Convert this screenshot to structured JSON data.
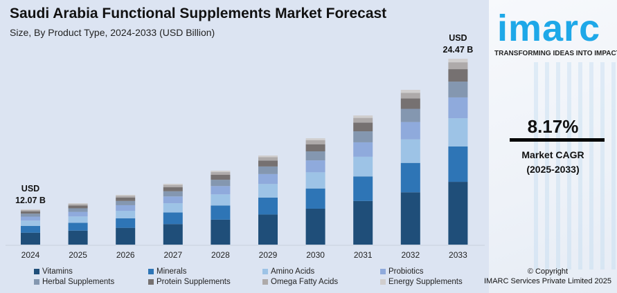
{
  "title": "Saudi Arabia Functional Supplements Market Forecast",
  "subtitle": "Size, By Product Type, 2024-2033 (USD Billion)",
  "brand": {
    "logo": "imarc",
    "tagline": "TRANSFORMING IDEAS INTO IMPACT",
    "color": "#1ea8e8"
  },
  "cagr": {
    "value": "8.17%",
    "label": "Market CAGR",
    "period": "(2025-2033)"
  },
  "copyright": {
    "line1": "© Copyright",
    "line2": "IMARC Services Private Limited 2025"
  },
  "chart_data": {
    "type": "bar",
    "stacked": true,
    "categories": [
      "2024",
      "2025",
      "2026",
      "2027",
      "2028",
      "2029",
      "2030",
      "2031",
      "2032",
      "2033"
    ],
    "totals": [
      12.07,
      12.57,
      13.26,
      14.17,
      15.25,
      16.5,
      17.92,
      19.8,
      21.91,
      24.47
    ],
    "annotations": [
      {
        "category": "2024",
        "line1": "USD",
        "line2": "12.07 B"
      },
      {
        "category": "2033",
        "line1": "USD",
        "line2": "24.47 B"
      }
    ],
    "series": [
      {
        "name": "Vitamins",
        "color": "#1f4e79",
        "share": 0.338
      },
      {
        "name": "Minerals",
        "color": "#2e75b6",
        "share": 0.19
      },
      {
        "name": "Amino Acids",
        "color": "#9dc3e6",
        "share": 0.152
      },
      {
        "name": "Probiotics",
        "color": "#8faadc",
        "share": 0.112
      },
      {
        "name": "Herbal Supplements",
        "color": "#8497b0",
        "share": 0.085
      },
      {
        "name": "Protein Supplements",
        "color": "#767171",
        "share": 0.067
      },
      {
        "name": "Omega Fatty Acids",
        "color": "#aeaaaa",
        "share": 0.037
      },
      {
        "name": "Energy Supplements",
        "color": "#d0cece",
        "share": 0.019
      }
    ],
    "xlabel": "",
    "ylabel": "",
    "grid": false,
    "legend": "bottom"
  }
}
